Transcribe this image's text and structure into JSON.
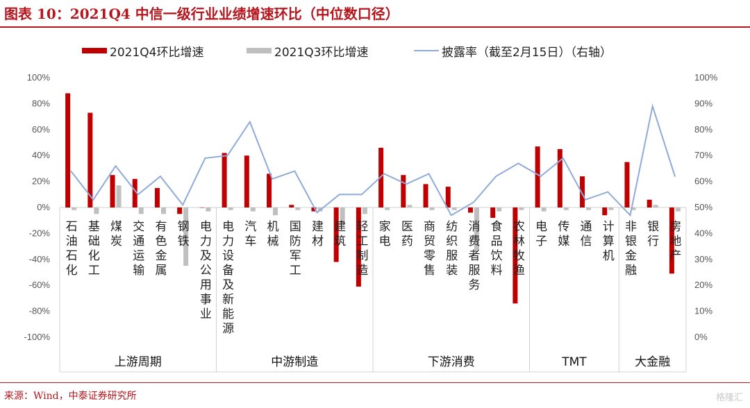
{
  "title": "图表 10：2021Q4 中信一级行业业绩增速环比（中位数口径）",
  "source": "来源：Wind，中泰证券研究所",
  "watermark": "格隆汇",
  "colors": {
    "q4": "#c00000",
    "q3": "#bfbfbf",
    "line": "#8eaadb",
    "accent": "#b5161d"
  },
  "chart_data": {
    "type": "bar",
    "categories": [
      "石油石化",
      "基础化工",
      "煤炭",
      "交通运输",
      "有色金属",
      "钢铁",
      "电力及公用事业",
      "电力设备及新能源",
      "汽车",
      "机械",
      "国防军工",
      "建材",
      "建筑",
      "轻工制造",
      "家电",
      "医药",
      "商贸零售",
      "纺织服装",
      "消费者服务",
      "食品饮料",
      "农林牧渔",
      "电子",
      "传媒",
      "通信",
      "计算机",
      "非银金融",
      "银行",
      "房地产"
    ],
    "groups": [
      {
        "name": "上游周期",
        "count": 7
      },
      {
        "name": "中游制造",
        "count": 7
      },
      {
        "name": "下游消费",
        "count": 7
      },
      {
        "name": "TMT",
        "count": 4
      },
      {
        "name": "大金融",
        "count": 3
      }
    ],
    "series": [
      {
        "name": "2021Q4环比增速",
        "type": "bar",
        "axis": "left",
        "values": [
          0.88,
          0.73,
          0.25,
          0.22,
          0.15,
          -0.05,
          0.0,
          0.42,
          0.4,
          0.26,
          0.02,
          -0.03,
          -0.42,
          -0.61,
          0.46,
          0.25,
          0.18,
          0.16,
          -0.04,
          -0.08,
          -0.74,
          0.47,
          0.45,
          0.24,
          -0.06,
          0.35,
          0.06,
          -0.51
        ]
      },
      {
        "name": "2021Q3环比增速",
        "type": "bar",
        "axis": "left",
        "values": [
          -0.02,
          -0.05,
          0.17,
          -0.05,
          -0.05,
          -0.45,
          -0.03,
          -0.02,
          -0.03,
          -0.06,
          -0.02,
          -0.03,
          -0.12,
          -0.05,
          -0.02,
          0.02,
          -0.02,
          -0.02,
          -0.33,
          -0.03,
          -0.02,
          -0.03,
          -0.02,
          -0.02,
          -0.02,
          -0.02,
          0.02,
          -0.03
        ]
      },
      {
        "name": "披露率（截至2月15日）（右轴）",
        "type": "line",
        "axis": "right",
        "values": [
          0.64,
          0.53,
          0.66,
          0.55,
          0.62,
          0.51,
          0.69,
          0.7,
          0.83,
          0.61,
          0.64,
          0.48,
          0.55,
          0.55,
          0.63,
          0.59,
          0.63,
          0.47,
          0.52,
          0.62,
          0.67,
          0.62,
          0.69,
          0.53,
          0.56,
          0.47,
          0.89,
          0.62
        ]
      }
    ],
    "left_axis": {
      "ylim": [
        -1.0,
        1.0
      ],
      "ticks": [
        "100%",
        "80%",
        "60%",
        "40%",
        "20%",
        "0%",
        "-20%",
        "-40%",
        "-60%",
        "-80%",
        "-100%"
      ]
    },
    "right_axis": {
      "ylim": [
        0.0,
        1.0
      ],
      "ticks": [
        "100%",
        "90%",
        "80%",
        "70%",
        "60%",
        "50%",
        "40%",
        "30%",
        "20%",
        "10%",
        "0%"
      ]
    },
    "legend": {
      "placement": "top",
      "items": [
        "2021Q4环比增速",
        "2021Q3环比增速",
        "披露率（截至2月15日）（右轴）"
      ]
    },
    "grid": false
  }
}
